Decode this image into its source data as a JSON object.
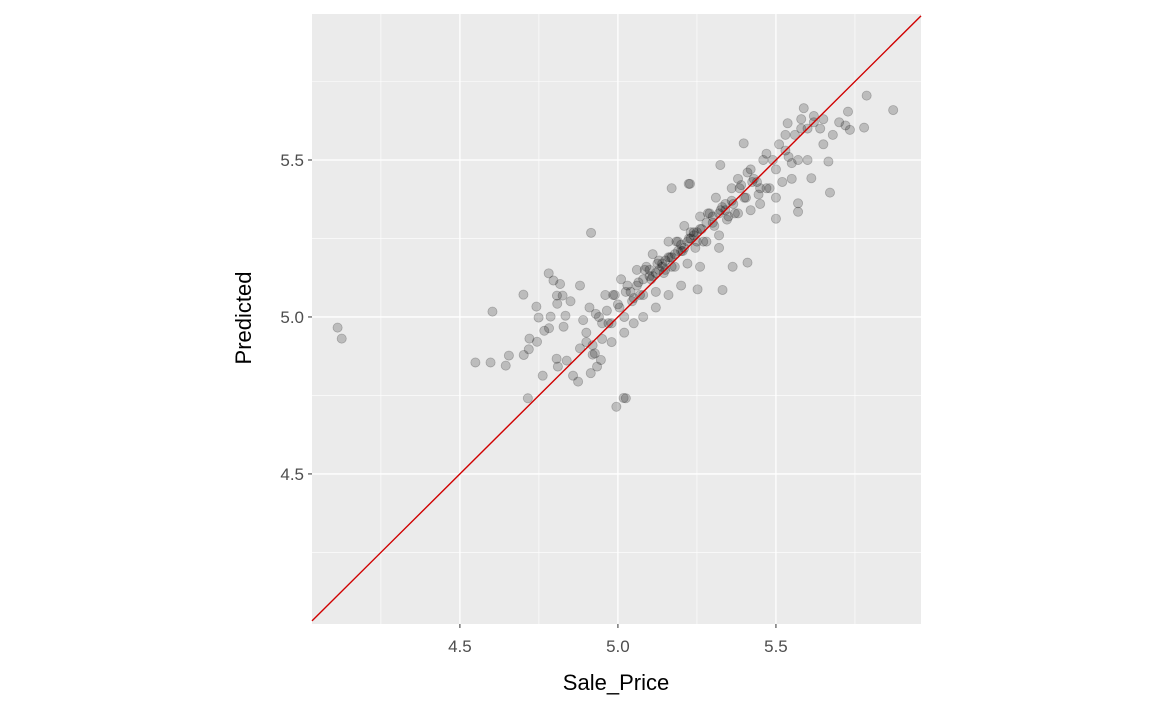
{
  "chart_data": {
    "type": "scatter",
    "title": "",
    "xlabel": "Sale_Price",
    "ylabel": "Predicted",
    "xlim": [
      4.032,
      5.959
    ],
    "ylim": [
      4.022,
      5.965
    ],
    "x_ticks": [
      4.5,
      5.0,
      5.5
    ],
    "x_tick_labels": [
      "4.5",
      "5.0",
      "5.5"
    ],
    "y_ticks": [
      4.5,
      5.0,
      5.5
    ],
    "y_tick_labels": [
      "4.5",
      "5.0",
      "5.5"
    ],
    "grid": true,
    "legend": "none",
    "point_color": "#000000",
    "point_alpha": 0.2,
    "reference_line": {
      "type": "identity",
      "slope": 1,
      "intercept": 0,
      "color": "#d00000"
    },
    "panel_background": "#ebebeb",
    "points": [
      [
        4.113,
        4.966
      ],
      [
        4.126,
        4.931
      ],
      [
        4.603,
        5.017
      ],
      [
        4.549,
        4.855
      ],
      [
        4.597,
        4.855
      ],
      [
        4.645,
        4.845
      ],
      [
        4.655,
        4.877
      ],
      [
        4.701,
        5.071
      ],
      [
        4.715,
        4.741
      ],
      [
        4.762,
        4.813
      ],
      [
        4.781,
        5.139
      ],
      [
        4.742,
        5.033
      ],
      [
        4.702,
        4.879
      ],
      [
        4.718,
        4.897
      ],
      [
        4.72,
        4.931
      ],
      [
        4.744,
        4.921
      ],
      [
        4.995,
        4.714
      ],
      [
        5.025,
        4.741
      ],
      [
        4.874,
        4.794
      ],
      [
        4.858,
        4.813
      ],
      [
        4.81,
        4.842
      ],
      [
        4.806,
        4.867
      ],
      [
        4.838,
        4.861
      ],
      [
        4.796,
        5.116
      ],
      [
        4.817,
        5.105
      ],
      [
        4.807,
        5.068
      ],
      [
        4.825,
        5.068
      ],
      [
        4.808,
        5.042
      ],
      [
        4.749,
        4.998
      ],
      [
        4.787,
        5.001
      ],
      [
        4.782,
        4.964
      ],
      [
        4.767,
        4.956
      ],
      [
        4.834,
        5.004
      ],
      [
        4.828,
        4.969
      ],
      [
        4.914,
        4.821
      ],
      [
        4.934,
        4.842
      ],
      [
        4.946,
        4.863
      ],
      [
        4.927,
        4.884
      ],
      [
        4.915,
        5.268
      ],
      [
        5.224,
        5.424
      ],
      [
        5.018,
        4.742
      ],
      [
        5.787,
        5.705
      ],
      [
        5.871,
        5.659
      ],
      [
        5.779,
        5.603
      ],
      [
        5.734,
        5.596
      ],
      [
        5.728,
        5.654
      ],
      [
        5.671,
        5.396
      ],
      [
        5.57,
        5.335
      ],
      [
        5.5,
        5.313
      ],
      [
        5.331,
        5.086
      ],
      [
        5.41,
        5.173
      ],
      [
        5.228,
        5.424
      ],
      [
        5.17,
        5.41
      ],
      [
        5.324,
        5.484
      ],
      [
        5.588,
        5.665
      ],
      [
        5.537,
        5.617
      ],
      [
        5.666,
        5.495
      ],
      [
        5.612,
        5.442
      ],
      [
        5.57,
        5.362
      ],
      [
        5.363,
        5.16
      ],
      [
        5.252,
        5.088
      ],
      [
        5.398,
        5.553
      ],
      [
        4.88,
        4.9
      ],
      [
        4.89,
        4.99
      ],
      [
        4.9,
        4.95
      ],
      [
        4.91,
        5.03
      ],
      [
        4.92,
        4.91
      ],
      [
        4.93,
        5.01
      ],
      [
        4.94,
        5.0
      ],
      [
        4.95,
        4.98
      ],
      [
        4.96,
        5.07
      ],
      [
        4.97,
        4.98
      ],
      [
        4.98,
        4.98
      ],
      [
        4.99,
        5.07
      ],
      [
        5.0,
        5.04
      ],
      [
        5.01,
        5.12
      ],
      [
        5.02,
        5.0
      ],
      [
        5.03,
        5.1
      ],
      [
        5.04,
        5.08
      ],
      [
        5.05,
        5.06
      ],
      [
        5.06,
        5.15
      ],
      [
        5.07,
        5.07
      ],
      [
        5.08,
        5.07
      ],
      [
        5.09,
        5.16
      ],
      [
        5.1,
        5.13
      ],
      [
        5.11,
        5.2
      ],
      [
        5.12,
        5.08
      ],
      [
        5.13,
        5.18
      ],
      [
        5.14,
        5.17
      ],
      [
        5.15,
        5.15
      ],
      [
        5.16,
        5.24
      ],
      [
        5.17,
        5.16
      ],
      [
        5.18,
        5.16
      ],
      [
        5.19,
        5.24
      ],
      [
        5.2,
        5.21
      ],
      [
        5.21,
        5.29
      ],
      [
        5.22,
        5.17
      ],
      [
        5.23,
        5.27
      ],
      [
        5.24,
        5.26
      ],
      [
        5.25,
        5.24
      ],
      [
        5.26,
        5.32
      ],
      [
        5.27,
        5.24
      ],
      [
        5.28,
        5.24
      ],
      [
        5.29,
        5.33
      ],
      [
        5.3,
        5.3
      ],
      [
        5.31,
        5.38
      ],
      [
        5.32,
        5.26
      ],
      [
        5.33,
        5.35
      ],
      [
        5.34,
        5.34
      ],
      [
        5.35,
        5.32
      ],
      [
        5.36,
        5.41
      ],
      [
        5.37,
        5.33
      ],
      [
        5.38,
        5.33
      ],
      [
        5.39,
        5.42
      ],
      [
        5.4,
        5.38
      ],
      [
        5.41,
        5.46
      ],
      [
        5.42,
        5.34
      ],
      [
        5.43,
        5.44
      ],
      [
        5.44,
        5.43
      ],
      [
        5.45,
        5.41
      ],
      [
        5.46,
        5.5
      ],
      [
        5.47,
        5.41
      ],
      [
        5.48,
        5.41
      ],
      [
        5.49,
        5.5
      ],
      [
        5.5,
        5.47
      ],
      [
        5.51,
        5.55
      ],
      [
        5.52,
        5.43
      ],
      [
        5.53,
        5.53
      ],
      [
        5.54,
        5.51
      ],
      [
        5.55,
        5.49
      ],
      [
        5.56,
        5.58
      ],
      [
        5.57,
        5.5
      ],
      [
        5.58,
        5.6
      ],
      [
        5.6,
        5.6
      ],
      [
        5.62,
        5.62
      ],
      [
        5.64,
        5.6
      ],
      [
        5.65,
        5.63
      ],
      [
        4.965,
        5.02
      ],
      [
        4.985,
        5.07
      ],
      [
        5.005,
        5.03
      ],
      [
        5.025,
        5.08
      ],
      [
        5.045,
        5.05
      ],
      [
        5.065,
        5.11
      ],
      [
        5.085,
        5.15
      ],
      [
        5.105,
        5.12
      ],
      [
        5.125,
        5.17
      ],
      [
        5.145,
        5.14
      ],
      [
        5.165,
        5.19
      ],
      [
        5.185,
        5.24
      ],
      [
        5.205,
        5.21
      ],
      [
        5.225,
        5.25
      ],
      [
        5.245,
        5.22
      ],
      [
        5.265,
        5.28
      ],
      [
        5.285,
        5.33
      ],
      [
        5.305,
        5.29
      ],
      [
        5.325,
        5.34
      ],
      [
        5.345,
        5.31
      ],
      [
        5.365,
        5.36
      ],
      [
        5.385,
        5.41
      ],
      [
        5.405,
        5.38
      ],
      [
        5.425,
        5.43
      ],
      [
        5.445,
        5.39
      ],
      [
        5.06,
        5.1
      ],
      [
        5.08,
        5.12
      ],
      [
        5.1,
        5.15
      ],
      [
        5.12,
        5.14
      ],
      [
        5.14,
        5.16
      ],
      [
        5.16,
        5.19
      ],
      [
        5.18,
        5.2
      ],
      [
        5.2,
        5.23
      ],
      [
        5.22,
        5.24
      ],
      [
        5.24,
        5.27
      ],
      [
        5.26,
        5.28
      ],
      [
        5.28,
        5.3
      ],
      [
        5.3,
        5.32
      ],
      [
        5.32,
        5.33
      ],
      [
        5.34,
        5.36
      ],
      [
        5.36,
        5.37
      ],
      [
        5.11,
        5.13
      ],
      [
        5.13,
        5.15
      ],
      [
        5.15,
        5.18
      ],
      [
        5.17,
        5.19
      ],
      [
        5.19,
        5.21
      ],
      [
        5.21,
        5.22
      ],
      [
        5.23,
        5.25
      ],
      [
        5.25,
        5.27
      ],
      [
        5.45,
        5.36
      ],
      [
        5.5,
        5.38
      ],
      [
        5.55,
        5.44
      ],
      [
        5.6,
        5.5
      ],
      [
        5.65,
        5.55
      ],
      [
        5.7,
        5.62
      ],
      [
        5.72,
        5.61
      ],
      [
        5.58,
        5.63
      ],
      [
        5.62,
        5.64
      ],
      [
        5.68,
        5.58
      ],
      [
        5.53,
        5.58
      ],
      [
        5.47,
        5.52
      ],
      [
        5.42,
        5.47
      ],
      [
        5.38,
        5.44
      ],
      [
        4.85,
        5.05
      ],
      [
        4.88,
        5.1
      ],
      [
        4.9,
        4.92
      ],
      [
        4.92,
        4.88
      ],
      [
        4.95,
        4.93
      ],
      [
        4.98,
        4.92
      ],
      [
        5.02,
        4.95
      ],
      [
        5.05,
        4.98
      ],
      [
        5.08,
        5.0
      ],
      [
        5.12,
        5.03
      ],
      [
        5.16,
        5.07
      ],
      [
        5.2,
        5.1
      ],
      [
        5.26,
        5.16
      ],
      [
        5.32,
        5.22
      ]
    ]
  }
}
